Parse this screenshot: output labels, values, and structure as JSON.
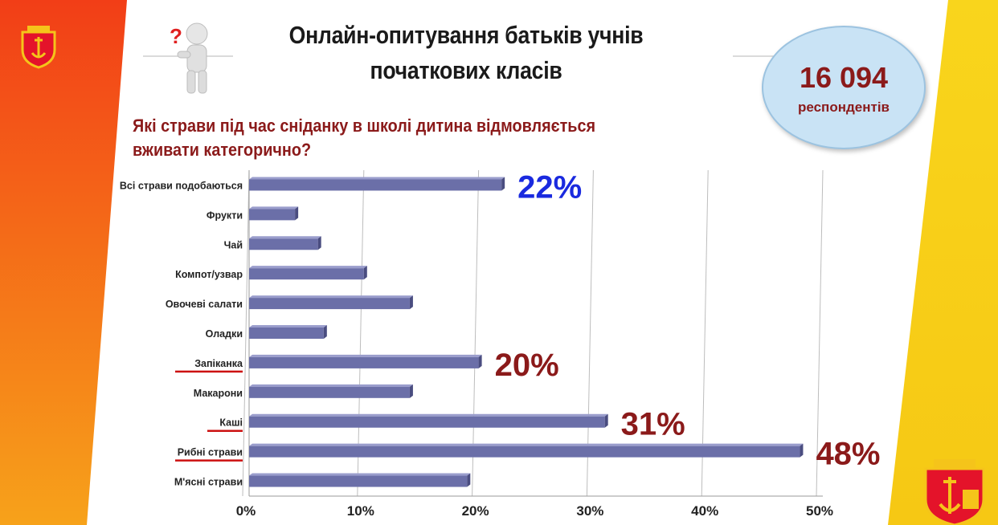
{
  "slide": {
    "title": "Онлайн-опитування батьків учнів початкових класів",
    "question": "Які страви під час сніданку в школі дитина відмовляється вживати категорично?",
    "respondents_number": "16 094",
    "respondents_label": "респондентів"
  },
  "colors": {
    "bar": "#6b6fa8",
    "accent_red": "#8b1a1a",
    "accent_blue": "#1a2adf",
    "underline": "#cc1111",
    "left_band": "#f04a1a",
    "right_band": "#f7d21b"
  },
  "icons": [
    "question-man-icon",
    "odesa-coat-of-arms-icon"
  ],
  "chart_data": {
    "type": "bar",
    "orientation": "horizontal",
    "categories": [
      "Всі страви подобаються",
      "Фрукти",
      "Чай",
      "Компот/узвар",
      "Овочеві салати",
      "Оладки",
      "Запіканка",
      "Макарони",
      "Каші",
      "Рибні страви",
      "М'ясні страви"
    ],
    "values": [
      22,
      4,
      6,
      10,
      14,
      6.5,
      20,
      14,
      31,
      48,
      19
    ],
    "xlim": [
      0,
      50
    ],
    "ticks": [
      "0%",
      "10%",
      "20%",
      "30%",
      "40%",
      "50%"
    ],
    "grid": true,
    "underlined_categories": [
      "Запіканка",
      "Каші",
      "Рибні страви"
    ],
    "annotations": [
      {
        "category": "Всі страви подобаються",
        "text": "22%",
        "color": "blue"
      },
      {
        "category": "Запіканка",
        "text": "20%",
        "color": "red"
      },
      {
        "category": "Каші",
        "text": "31%",
        "color": "red"
      },
      {
        "category": "Рибні страви",
        "text": "48%",
        "color": "red"
      }
    ]
  }
}
